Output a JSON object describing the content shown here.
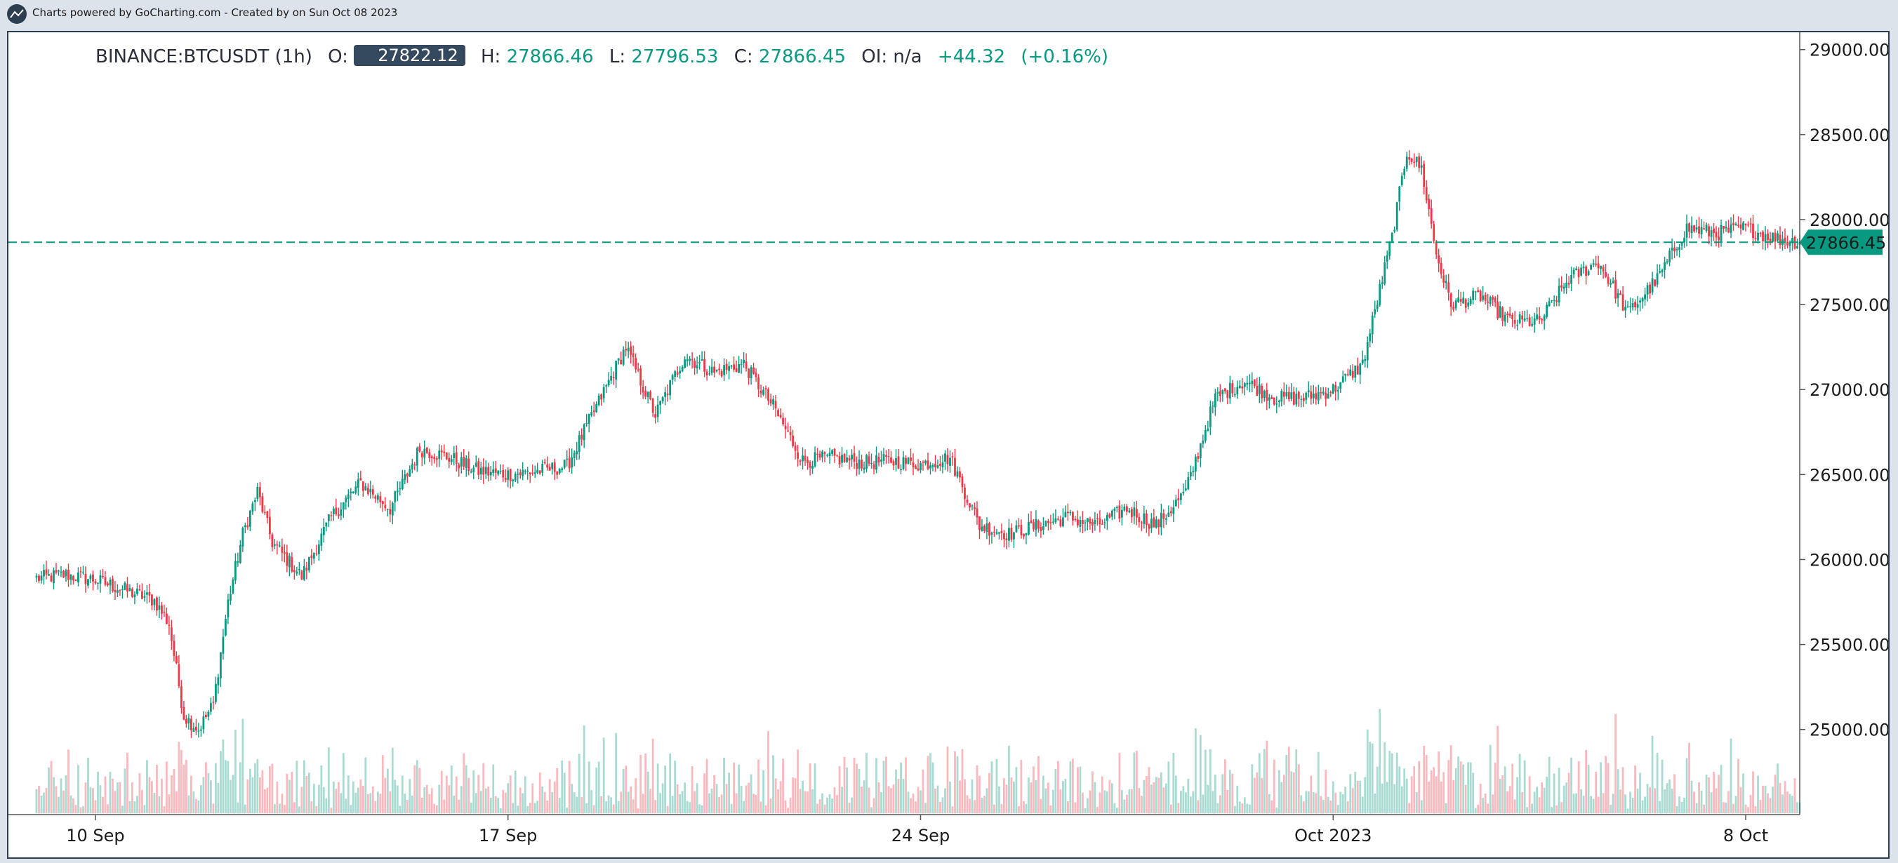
{
  "header": {
    "attribution": "Charts powered by GoCharting.com - Created by  on Sun Oct 08 2023"
  },
  "legend": {
    "symbol": "BINANCE:BTCUSDT (1h)",
    "o_label": "O:",
    "o_value": "27822.12",
    "h_label": "H:",
    "h_value": "27866.46",
    "l_label": "L:",
    "l_value": "27796.53",
    "c_label": "C:",
    "c_value": "27866.45",
    "oi_label": "OI:",
    "oi_value": "n/a",
    "change": "+44.32",
    "change_pct": "(+0.16%)"
  },
  "colors": {
    "up": "#089981",
    "down": "#f23645",
    "price_line": "#089981",
    "axis_text": "#1b1b1b",
    "border": "#2c3e50"
  },
  "chart_data": {
    "type": "candlestick",
    "symbol": "BINANCE:BTCUSDT",
    "interval": "1h",
    "y_ticks": [
      29000,
      28500,
      28000,
      27500,
      27000,
      26500,
      26000,
      25500,
      25000
    ],
    "y_tick_labels": [
      "29000.00",
      "28500.00",
      "28000.00",
      "27500.00",
      "27000.00",
      "26500.00",
      "26000.00",
      "25500.00",
      "25000.00"
    ],
    "ylim": [
      24520,
      29040
    ],
    "x_ticks": [
      "10 Sep",
      "17 Sep",
      "24 Sep",
      "Oct 2023",
      "8 Oct"
    ],
    "x_tick_dates": [
      "2023-09-10",
      "2023-09-17",
      "2023-09-24",
      "2023-10-01",
      "2023-10-08"
    ],
    "xlim": [
      "2023-09-09 00:00",
      "2023-10-08 22:00"
    ],
    "last_price": 27866.45,
    "last_price_label": "27866.45",
    "price_anchors": [
      [
        "2023-09-09 00:00",
        25890
      ],
      [
        "2023-09-09 12:00",
        25910
      ],
      [
        "2023-09-10 00:00",
        25880
      ],
      [
        "2023-09-10 12:00",
        25820
      ],
      [
        "2023-09-11 00:00",
        25760
      ],
      [
        "2023-09-11 06:00",
        25620
      ],
      [
        "2023-09-11 12:00",
        25080
      ],
      [
        "2023-09-11 18:00",
        25000
      ],
      [
        "2023-09-12 00:00",
        25150
      ],
      [
        "2023-09-12 06:00",
        25750
      ],
      [
        "2023-09-12 12:00",
        26150
      ],
      [
        "2023-09-12 18:00",
        26400
      ],
      [
        "2023-09-13 00:00",
        26100
      ],
      [
        "2023-09-13 12:00",
        25900
      ],
      [
        "2023-09-14 00:00",
        26250
      ],
      [
        "2023-09-14 12:00",
        26450
      ],
      [
        "2023-09-15 00:00",
        26300
      ],
      [
        "2023-09-15 12:00",
        26650
      ],
      [
        "2023-09-16 00:00",
        26600
      ],
      [
        "2023-09-16 12:00",
        26520
      ],
      [
        "2023-09-17 00:00",
        26500
      ],
      [
        "2023-09-17 12:00",
        26520
      ],
      [
        "2023-09-18 00:00",
        26550
      ],
      [
        "2023-09-18 12:00",
        26900
      ],
      [
        "2023-09-19 00:00",
        27250
      ],
      [
        "2023-09-19 12:00",
        26850
      ],
      [
        "2023-09-20 00:00",
        27200
      ],
      [
        "2023-09-20 12:00",
        27100
      ],
      [
        "2023-09-21 00:00",
        27150
      ],
      [
        "2023-09-21 12:00",
        26900
      ],
      [
        "2023-09-22 00:00",
        26580
      ],
      [
        "2023-09-22 12:00",
        26600
      ],
      [
        "2023-09-23 00:00",
        26570
      ],
      [
        "2023-09-23 12:00",
        26580
      ],
      [
        "2023-09-24 00:00",
        26560
      ],
      [
        "2023-09-24 12:00",
        26600
      ],
      [
        "2023-09-25 00:00",
        26200
      ],
      [
        "2023-09-25 12:00",
        26150
      ],
      [
        "2023-09-26 00:00",
        26200
      ],
      [
        "2023-09-26 12:00",
        26250
      ],
      [
        "2023-09-27 00:00",
        26200
      ],
      [
        "2023-09-27 12:00",
        26300
      ],
      [
        "2023-09-28 00:00",
        26200
      ],
      [
        "2023-09-28 12:00",
        26400
      ],
      [
        "2023-09-29 00:00",
        26950
      ],
      [
        "2023-09-29 12:00",
        27050
      ],
      [
        "2023-09-30 00:00",
        26950
      ],
      [
        "2023-09-30 12:00",
        26950
      ],
      [
        "2023-10-01 00:00",
        27000
      ],
      [
        "2023-10-01 12:00",
        27150
      ],
      [
        "2023-10-02 00:00",
        27900
      ],
      [
        "2023-10-02 06:00",
        28400
      ],
      [
        "2023-10-02 12:00",
        28300
      ],
      [
        "2023-10-02 18:00",
        27800
      ],
      [
        "2023-10-03 00:00",
        27500
      ],
      [
        "2023-10-03 12:00",
        27550
      ],
      [
        "2023-10-04 00:00",
        27400
      ],
      [
        "2023-10-04 12:00",
        27400
      ],
      [
        "2023-10-05 00:00",
        27650
      ],
      [
        "2023-10-05 12:00",
        27750
      ],
      [
        "2023-10-06 00:00",
        27450
      ],
      [
        "2023-10-06 12:00",
        27650
      ],
      [
        "2023-10-07 00:00",
        27950
      ],
      [
        "2023-10-07 12:00",
        27920
      ],
      [
        "2023-10-08 00:00",
        27950
      ],
      [
        "2023-10-08 12:00",
        27890
      ],
      [
        "2023-10-08 22:00",
        27866
      ]
    ],
    "volume_bars": "unlabeled volume histogram along the bottom of the price panel"
  }
}
